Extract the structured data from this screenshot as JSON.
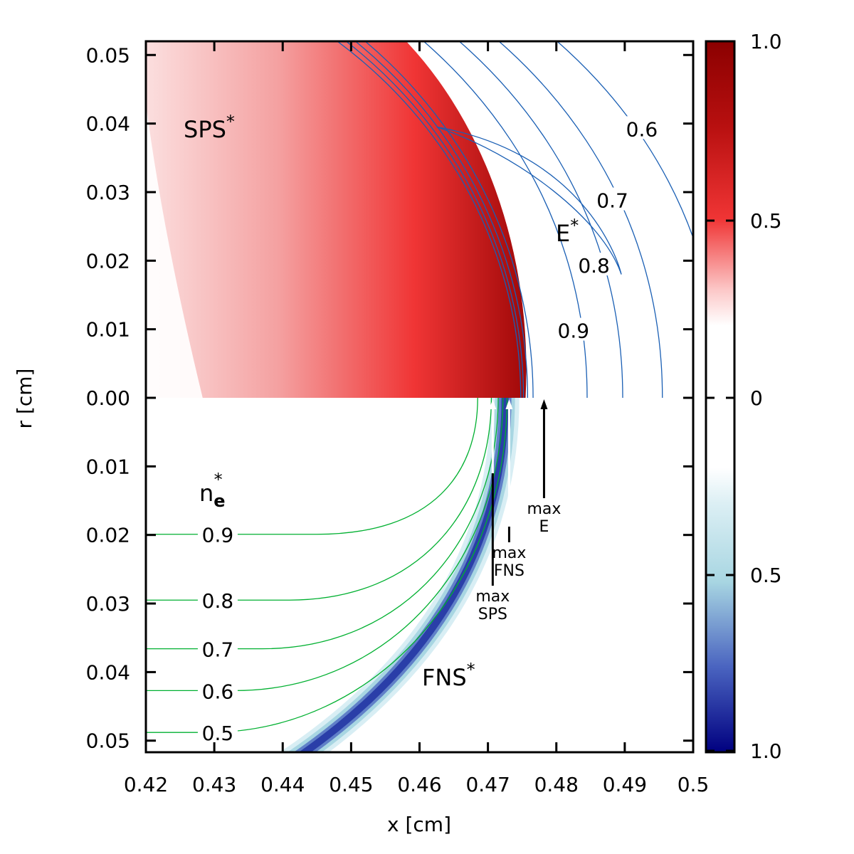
{
  "chart_data": {
    "type": "heatmap",
    "xlabel": "x [cm]",
    "ylabel": "r [cm]",
    "xlim": [
      0.42,
      0.5
    ],
    "ylim_upper": [
      0,
      0.052
    ],
    "ylim_lower": [
      0,
      0.052
    ],
    "x_ticks": [
      "0.42",
      "0.43",
      "0.44",
      "0.45",
      "0.46",
      "0.47",
      "0.48",
      "0.49",
      "0.5"
    ],
    "x_tick_values": [
      0.42,
      0.43,
      0.44,
      0.45,
      0.46,
      0.47,
      0.48,
      0.49,
      0.5
    ],
    "y_ticks_upper": [
      "0.00",
      "0.01",
      "0.02",
      "0.03",
      "0.04",
      "0.05"
    ],
    "y_ticks_upper_values": [
      0,
      0.01,
      0.02,
      0.03,
      0.04,
      0.05
    ],
    "y_ticks_lower": [
      "0.01",
      "0.02",
      "0.03",
      "0.04",
      "0.05"
    ],
    "y_ticks_lower_values": [
      0.01,
      0.02,
      0.03,
      0.04,
      0.05
    ],
    "colorbar": {
      "ticks_top": [
        "1.0",
        "0.5",
        "0"
      ],
      "ticks_bottom": [
        "0.5",
        "1.0"
      ],
      "top_color": "#8b0000",
      "mid_top_color": "#f03030",
      "bottom_color": "#000080",
      "mid_bottom_color": "#add8e6"
    },
    "regions": {
      "sps_label": "SPS",
      "fns_label": "FNS",
      "e_label": "E",
      "ne_label": "n",
      "ne_subscript": "e",
      "star": "*"
    },
    "e_contours": [
      {
        "label": "0.9",
        "level": 0.9
      },
      {
        "label": "0.8",
        "level": 0.8
      },
      {
        "label": "0.7",
        "level": 0.7
      },
      {
        "label": "0.6",
        "level": 0.6
      }
    ],
    "ne_contours": [
      {
        "label": "0.9",
        "level": 0.9,
        "r_far": 0.0199
      },
      {
        "label": "0.8",
        "level": 0.8,
        "r_far": 0.0295
      },
      {
        "label": "0.7",
        "level": 0.7,
        "r_far": 0.0366
      },
      {
        "label": "0.6",
        "level": 0.6,
        "r_far": 0.0427
      },
      {
        "label": "0.5",
        "level": 0.5,
        "r_far": 0.0488
      }
    ],
    "markers": [
      {
        "line1": "max",
        "line2": "SPS",
        "x": 0.4707
      },
      {
        "line1": "max",
        "line2": "FNS",
        "x": 0.4731
      },
      {
        "line1": "max",
        "line2": "E",
        "x": 0.4782
      }
    ],
    "colors": {
      "e_contour": "#1a5fb4",
      "ne_contour": "#00b030",
      "arrow_white": "#ffffff",
      "arrow_black": "#000000"
    }
  }
}
